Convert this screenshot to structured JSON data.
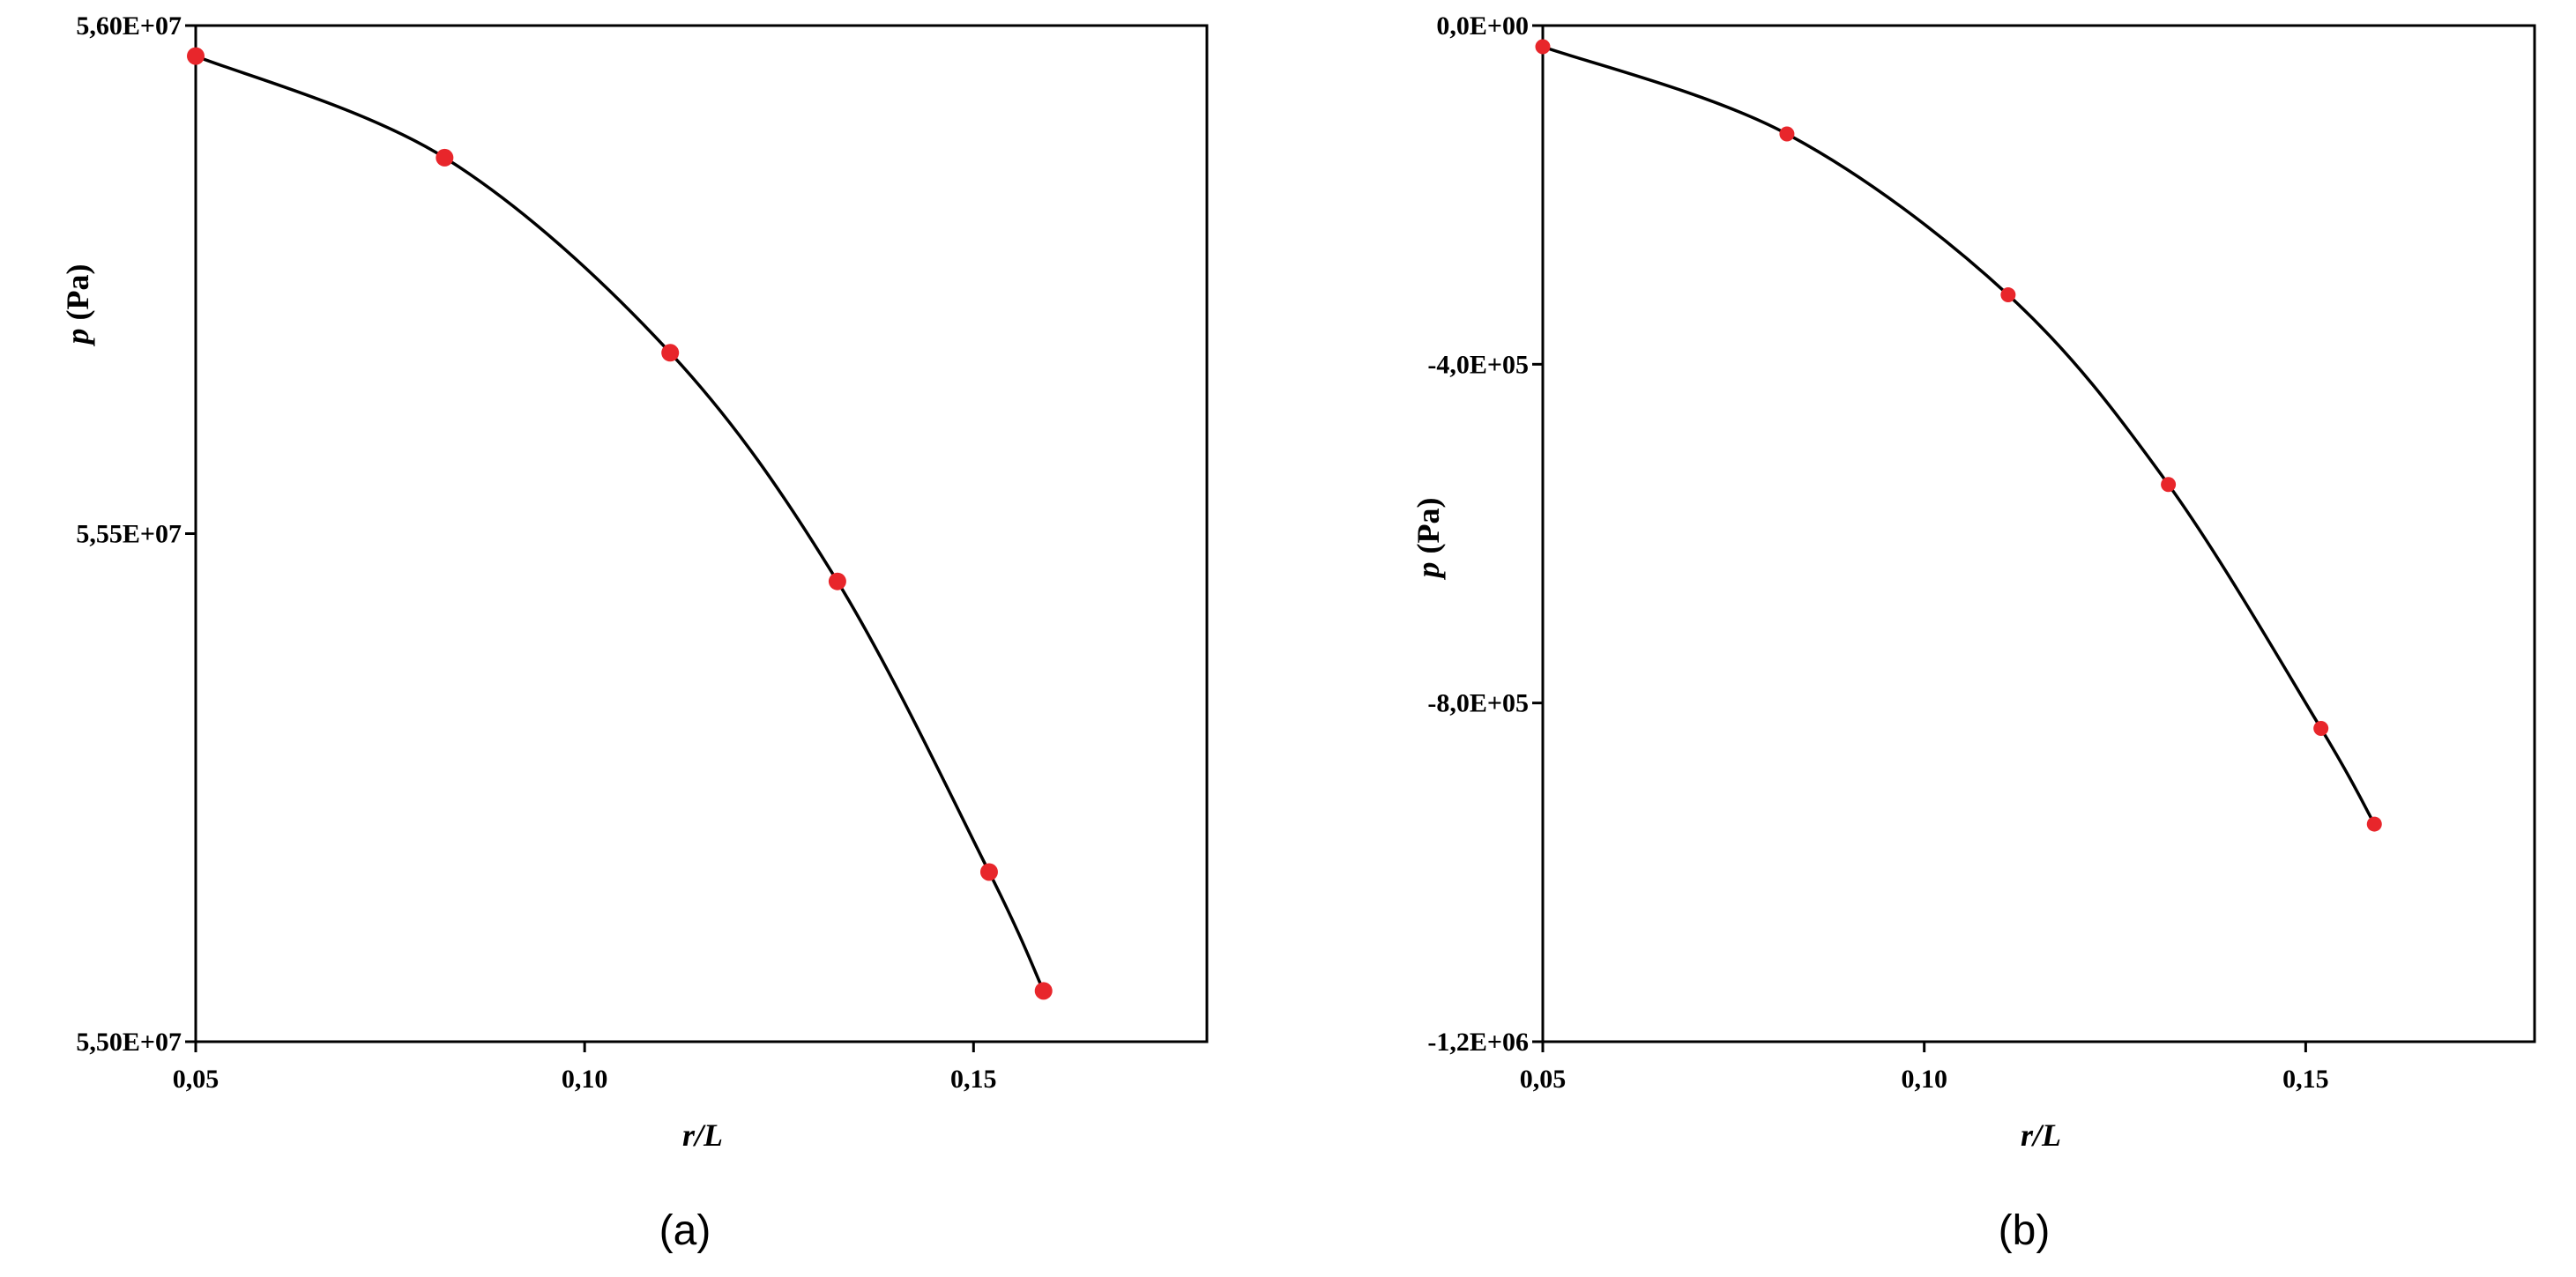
{
  "colors": {
    "point": "#e8262b",
    "curve": "#000000",
    "frame": "#000000"
  },
  "chart_data": [
    {
      "type": "scatter",
      "caption": "(a)",
      "xlabel_var": "r/L",
      "ylabel_var": "p",
      "ylabel_unit": "(Pa)",
      "xlim": [
        0.05,
        0.18
      ],
      "ylim": [
        55000000,
        56000000
      ],
      "x_ticks": [
        0.05,
        0.1,
        0.15
      ],
      "x_tick_labels": [
        "0,05",
        "0,10",
        "0,15"
      ],
      "y_ticks": [
        55000000,
        55500000,
        56000000
      ],
      "y_tick_labels": [
        "5,50E+07",
        "5,55E+07",
        "5,60E+07"
      ],
      "series": [
        {
          "x": [
            0.05,
            0.082,
            0.111,
            0.1325,
            0.152,
            0.159
          ],
          "y": [
            55970000,
            55870000,
            55678000,
            55453000,
            55167000,
            55050000
          ]
        }
      ]
    },
    {
      "type": "scatter",
      "caption": "(b)",
      "xlabel_var": "r/L",
      "ylabel_var": "p",
      "ylabel_unit": "(Pa)",
      "xlim": [
        0.05,
        0.18
      ],
      "ylim": [
        -1200000,
        0
      ],
      "x_ticks": [
        0.05,
        0.1,
        0.15
      ],
      "x_tick_labels": [
        "0,05",
        "0,10",
        "0,15"
      ],
      "y_ticks": [
        -1200000,
        -800000,
        -400000,
        0
      ],
      "y_tick_labels": [
        "-1,2E+06",
        "-8,0E+05",
        "-4,0E+05",
        "0,0E+00"
      ],
      "series": [
        {
          "x": [
            0.05,
            0.082,
            0.111,
            0.132,
            0.152,
            0.159
          ],
          "y": [
            -25000,
            -128000,
            -318000,
            -542000,
            -830000,
            -943000
          ]
        }
      ]
    }
  ]
}
